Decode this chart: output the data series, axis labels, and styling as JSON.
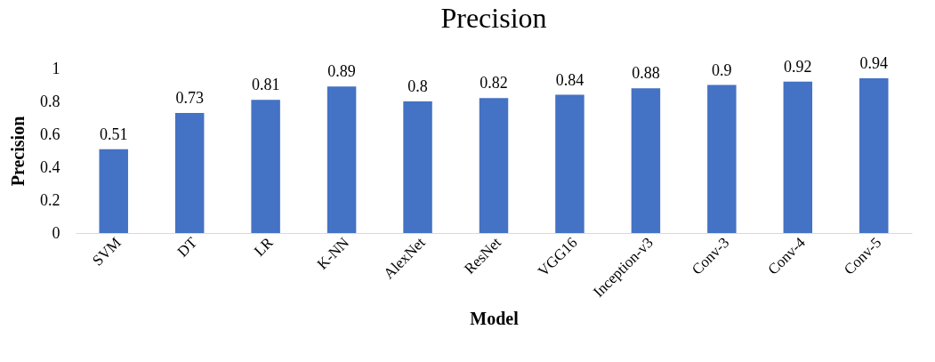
{
  "chart_data": {
    "type": "bar",
    "title": "Precision",
    "xlabel": "Model",
    "ylabel": "Precision",
    "categories": [
      "SVM",
      "DT",
      "LR",
      "K-NN",
      "AlexNet",
      "ResNet",
      "VGG16",
      "Inception-v3",
      "Conv-3",
      "Conv-4",
      "Conv-5"
    ],
    "values": [
      0.51,
      0.73,
      0.81,
      0.89,
      0.8,
      0.82,
      0.84,
      0.88,
      0.9,
      0.92,
      0.94
    ],
    "color": "#4472c4",
    "ylim": [
      0,
      1
    ],
    "yticks": [
      0,
      0.2,
      0.4,
      0.6,
      0.8,
      1
    ],
    "grid": false,
    "data_labels": true
  }
}
